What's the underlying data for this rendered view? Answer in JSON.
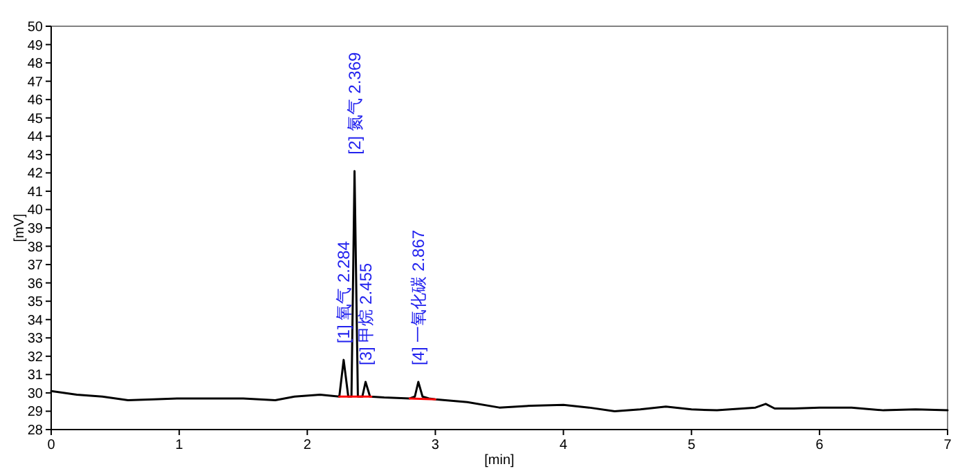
{
  "chart_data": {
    "type": "line",
    "xlabel": "[min]",
    "ylabel": "[mV]",
    "xlim": [
      0,
      7
    ],
    "xticks": [
      0,
      1,
      2,
      3,
      4,
      5,
      6,
      7
    ],
    "ylim": [
      28,
      50
    ],
    "yticks": [
      28,
      29,
      30,
      31,
      32,
      33,
      34,
      35,
      36,
      37,
      38,
      39,
      40,
      41,
      42,
      43,
      44,
      45,
      46,
      47,
      48,
      49,
      50
    ],
    "grid": false,
    "series": [
      {
        "color": "#000000",
        "x": [
          0,
          0.2,
          0.4,
          0.6,
          0.8,
          1.0,
          1.25,
          1.5,
          1.75,
          1.9,
          2.1,
          2.25,
          2.284,
          2.32,
          2.345,
          2.369,
          2.395,
          2.43,
          2.455,
          2.49,
          2.6,
          2.8,
          2.84,
          2.867,
          2.9,
          2.95,
          3.0,
          3.25,
          3.5,
          3.75,
          4.0,
          4.2,
          4.4,
          4.6,
          4.8,
          5.0,
          5.2,
          5.5,
          5.58,
          5.65,
          5.8,
          6.0,
          6.25,
          6.5,
          6.75,
          7.0
        ],
        "values": [
          30.1,
          29.9,
          29.8,
          29.6,
          29.65,
          29.7,
          29.7,
          29.7,
          29.6,
          29.8,
          29.9,
          29.8,
          31.8,
          29.8,
          29.8,
          42.1,
          29.8,
          29.8,
          30.6,
          29.8,
          29.75,
          29.7,
          29.8,
          30.6,
          29.8,
          29.7,
          29.65,
          29.5,
          29.2,
          29.3,
          29.35,
          29.2,
          29.0,
          29.1,
          29.25,
          29.1,
          29.05,
          29.2,
          29.4,
          29.15,
          29.15,
          29.2,
          29.2,
          29.05,
          29.1,
          29.05
        ]
      },
      {
        "color": "#ff0000",
        "x": [
          2.25,
          2.5
        ],
        "values": [
          29.8,
          29.8
        ]
      },
      {
        "color": "#ff0000",
        "x": [
          2.8,
          3.0
        ],
        "values": [
          29.7,
          29.65
        ]
      }
    ],
    "annotations": [
      {
        "text": "[1] 氧气 2.284",
        "x": 2.284,
        "y": 31.8
      },
      {
        "text": "[2] 氮气 2.369",
        "x": 2.369,
        "y": 42.1
      },
      {
        "text": "[3] 甲烷 2.455",
        "x": 2.455,
        "y": 30.6
      },
      {
        "text": "[4] 一氧化碳 2.867",
        "x": 2.867,
        "y": 30.6
      }
    ]
  }
}
